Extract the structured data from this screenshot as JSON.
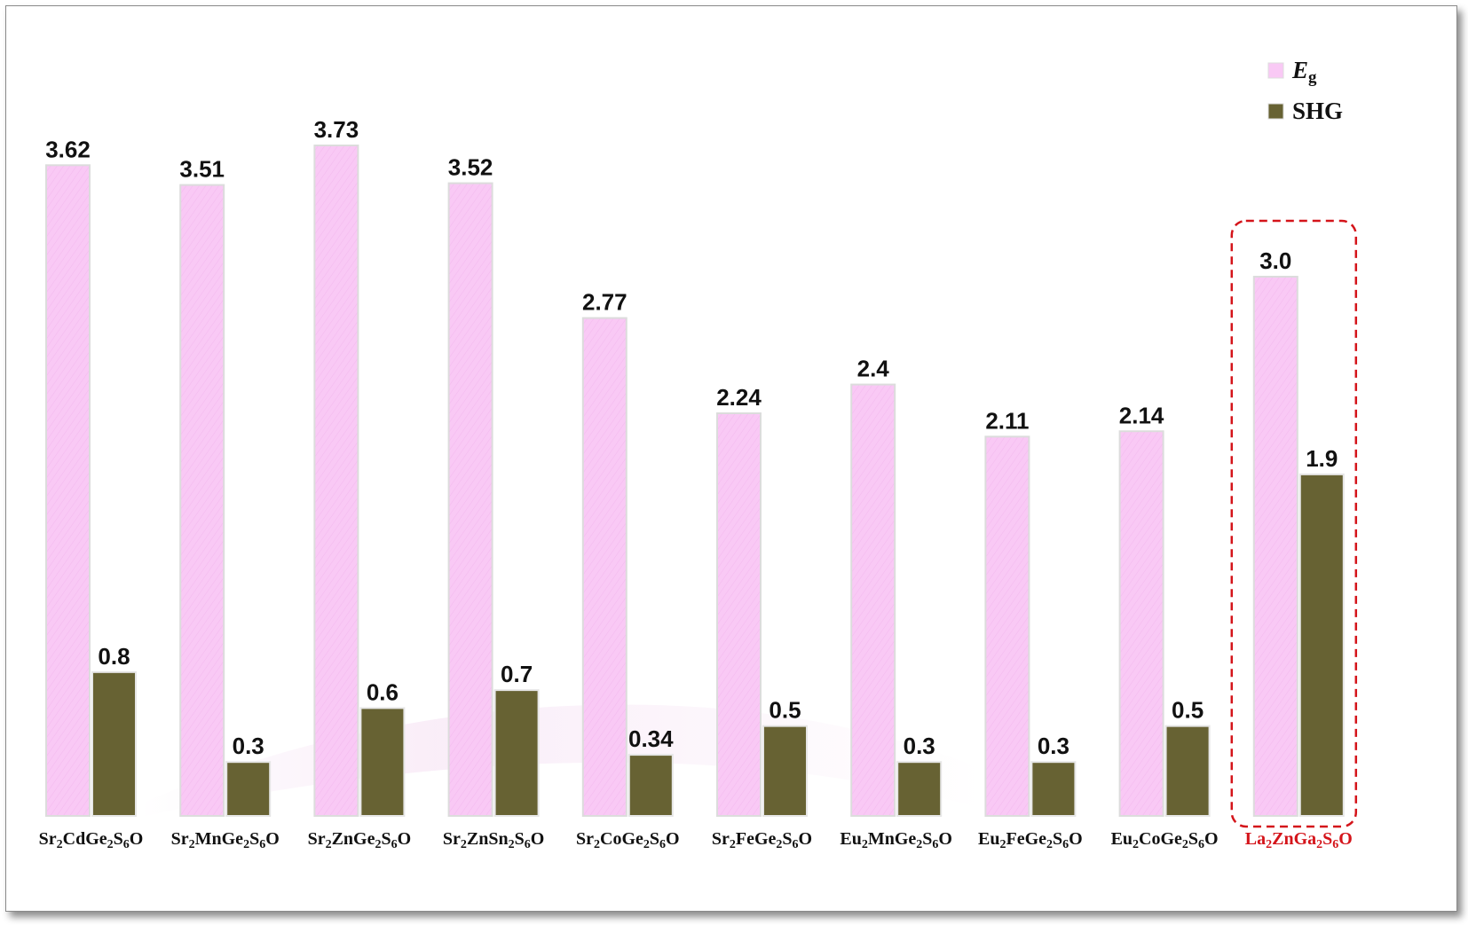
{
  "chart_data": {
    "type": "bar",
    "categories": [
      {
        "id": "sr2cdge2s6o",
        "parts": [
          [
            "Sr",
            ""
          ],
          [
            "2",
            "sub"
          ],
          [
            "CdGe",
            ""
          ],
          [
            "2",
            "sub"
          ],
          [
            "S",
            ""
          ],
          [
            "6",
            "sub"
          ],
          [
            "O",
            ""
          ]
        ]
      },
      {
        "id": "sr2mnge2s6o",
        "parts": [
          [
            "Sr",
            ""
          ],
          [
            "2",
            "sub"
          ],
          [
            "MnGe",
            ""
          ],
          [
            "2",
            "sub"
          ],
          [
            "S",
            ""
          ],
          [
            "6",
            "sub"
          ],
          [
            "O",
            ""
          ]
        ]
      },
      {
        "id": "sr2znge2s6o",
        "parts": [
          [
            "Sr",
            ""
          ],
          [
            "2",
            "sub"
          ],
          [
            "ZnGe",
            ""
          ],
          [
            "2",
            "sub"
          ],
          [
            "S",
            ""
          ],
          [
            "6",
            "sub"
          ],
          [
            "O",
            ""
          ]
        ]
      },
      {
        "id": "sr2znsn2s6o",
        "parts": [
          [
            "Sr",
            ""
          ],
          [
            "2",
            "sub"
          ],
          [
            "ZnSn",
            ""
          ],
          [
            "2",
            "sub"
          ],
          [
            "S",
            ""
          ],
          [
            "6",
            "sub"
          ],
          [
            "O",
            ""
          ]
        ]
      },
      {
        "id": "sr2coge2s6o",
        "parts": [
          [
            "Sr",
            ""
          ],
          [
            "2",
            "sub"
          ],
          [
            "CoGe",
            ""
          ],
          [
            "2",
            "sub"
          ],
          [
            "S",
            ""
          ],
          [
            "6",
            "sub"
          ],
          [
            "O",
            ""
          ]
        ]
      },
      {
        "id": "sr2fege2s6o",
        "parts": [
          [
            "Sr",
            ""
          ],
          [
            "2",
            "sub"
          ],
          [
            "FeGe",
            ""
          ],
          [
            "2",
            "sub"
          ],
          [
            "S",
            ""
          ],
          [
            "6",
            "sub"
          ],
          [
            "O",
            ""
          ]
        ]
      },
      {
        "id": "eu2mnge2s6o",
        "parts": [
          [
            "Eu",
            ""
          ],
          [
            "2",
            "sub"
          ],
          [
            "MnGe",
            ""
          ],
          [
            "2",
            "sub"
          ],
          [
            "S",
            ""
          ],
          [
            "6",
            "sub"
          ],
          [
            "O",
            ""
          ]
        ]
      },
      {
        "id": "eu2fege2s6o",
        "parts": [
          [
            "Eu",
            ""
          ],
          [
            "2",
            "sub"
          ],
          [
            "FeGe",
            ""
          ],
          [
            "2",
            "sub"
          ],
          [
            "S",
            ""
          ],
          [
            "6",
            "sub"
          ],
          [
            "O",
            ""
          ]
        ]
      },
      {
        "id": "eu2coge2s6o",
        "parts": [
          [
            "Eu",
            ""
          ],
          [
            "2",
            "sub"
          ],
          [
            "CoGe",
            ""
          ],
          [
            "2",
            "sub"
          ],
          [
            "S",
            ""
          ],
          [
            "6",
            "sub"
          ],
          [
            "O",
            ""
          ]
        ]
      },
      {
        "id": "la2znga2s6o",
        "parts": [
          [
            "La",
            ""
          ],
          [
            "2",
            "sub"
          ],
          [
            "ZnGa",
            ""
          ],
          [
            "2",
            "sub"
          ],
          [
            "S",
            ""
          ],
          [
            "6",
            "sub"
          ],
          [
            "O",
            ""
          ]
        ],
        "highlight": true
      }
    ],
    "series": [
      {
        "key": "eg",
        "legend": [
          [
            "E",
            "italic"
          ],
          [
            "g",
            "sub"
          ]
        ],
        "color": "#f9c9f5",
        "values": [
          3.62,
          3.51,
          3.73,
          3.52,
          2.77,
          2.24,
          2.4,
          2.11,
          2.14,
          3.0
        ],
        "labels": [
          "3.62",
          "3.51",
          "3.73",
          "3.52",
          "2.77",
          "2.24",
          "2.4",
          "2.11",
          "2.14",
          "3.0"
        ]
      },
      {
        "key": "shg",
        "legend": [
          [
            "SHG",
            ""
          ]
        ],
        "color": "#676233",
        "values": [
          0.8,
          0.3,
          0.6,
          0.7,
          0.34,
          0.5,
          0.3,
          0.3,
          0.5,
          1.9
        ],
        "labels": [
          "0.8",
          "0.3",
          "0.6",
          "0.7",
          "0.34",
          "0.5",
          "0.3",
          "0.3",
          "0.5",
          "1.9"
        ]
      }
    ],
    "ylim": [
      0,
      3.73
    ],
    "axes_visible": false,
    "grid": false,
    "legend_position": "top-right",
    "highlight_color": "#d4141a",
    "highlight_box": "dashed"
  }
}
